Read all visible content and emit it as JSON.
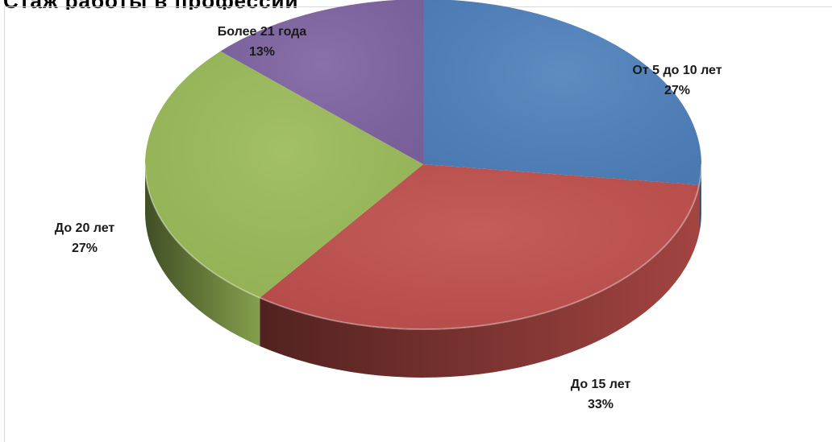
{
  "header": {
    "title": "Стаж работы в профессии"
  },
  "chart_data": {
    "type": "pie",
    "title": "",
    "categories": [
      "От 5 до 10 лет",
      "До 15 лет",
      "До 20 лет",
      "Более 21 года"
    ],
    "values": [
      27,
      33,
      27,
      13
    ],
    "labels": [
      "27%",
      "33%",
      "27%",
      "13%"
    ],
    "colors": [
      "#4f81bd",
      "#c0504d",
      "#9bbb59",
      "#8064a2"
    ],
    "legend": "none",
    "style": "3d"
  }
}
